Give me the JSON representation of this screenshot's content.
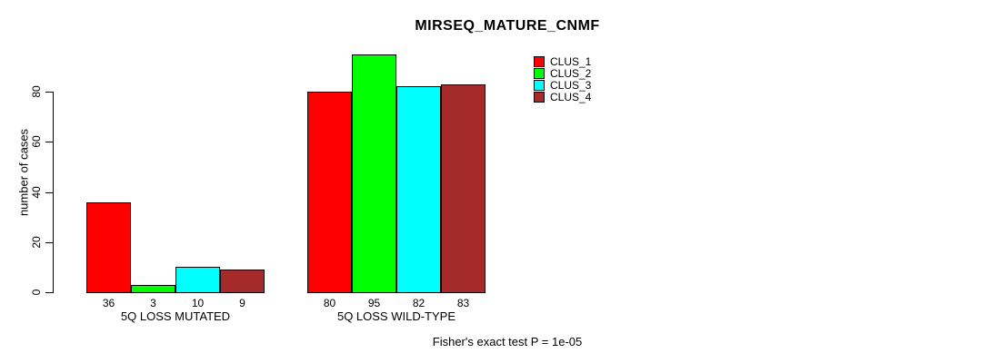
{
  "chart_data": {
    "type": "bar",
    "title": "MIRSEQ_MATURE_CNMF",
    "xlabel": "",
    "ylabel": "number of cases",
    "ylim": [
      0,
      95
    ],
    "yticks": [
      0,
      20,
      40,
      60,
      80
    ],
    "grid": false,
    "legend_position": "top-right",
    "categories": [
      "5Q LOSS MUTATED",
      "5Q LOSS WILD-TYPE"
    ],
    "series": [
      {
        "name": "CLUS_1",
        "color": "#FF0000",
        "values": [
          36,
          80
        ]
      },
      {
        "name": "CLUS_2",
        "color": "#00FF00",
        "values": [
          3,
          95
        ]
      },
      {
        "name": "CLUS_3",
        "color": "#00FFFF",
        "values": [
          10,
          82
        ]
      },
      {
        "name": "CLUS_4",
        "color": "#A52A2A",
        "values": [
          9,
          83
        ]
      }
    ],
    "bar_value_labels_shown": true,
    "annotation": "Fisher's exact test P = 1e-05"
  }
}
